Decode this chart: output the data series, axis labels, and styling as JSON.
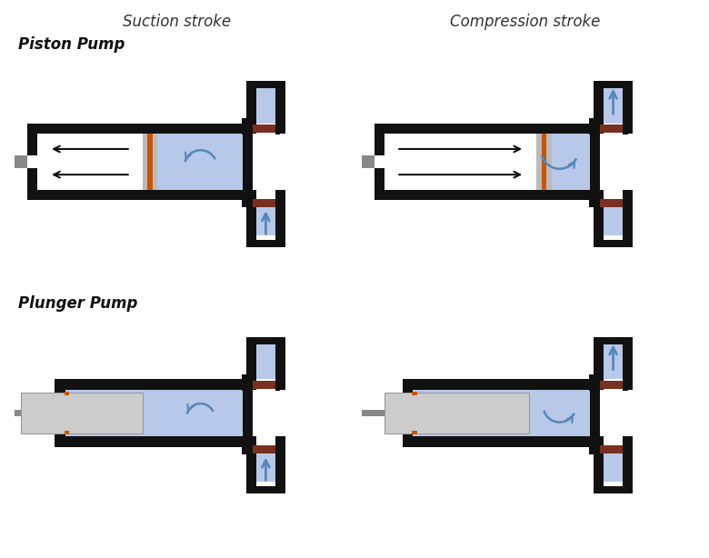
{
  "bg_color": "#ffffff",
  "title_suction": "Suction stroke",
  "title_compression": "Compression stroke",
  "label_piston": "Piston Pump",
  "label_plunger": "Plunger Pump",
  "colors": {
    "fluid": "#b8c8e8",
    "wall": "#111111",
    "piston_seal_orange": "#cc5500",
    "piston_seal_gray": "#bbbbbb",
    "rod": "#888888",
    "valve_body": "#7a3020",
    "arrow_blue": "#5588bb",
    "arrow_black": "#111111"
  }
}
